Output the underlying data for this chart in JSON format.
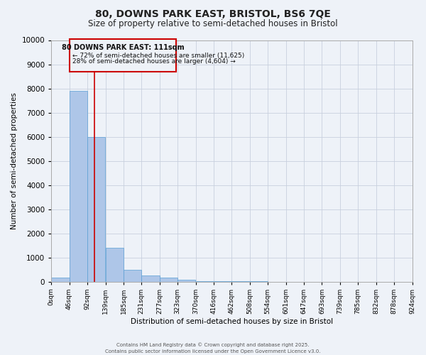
{
  "title1": "80, DOWNS PARK EAST, BRISTOL, BS6 7QE",
  "title2": "Size of property relative to semi-detached houses in Bristol",
  "xlabel": "Distribution of semi-detached houses by size in Bristol",
  "ylabel": "Number of semi-detached properties",
  "annotation_title": "80 DOWNS PARK EAST: 111sqm",
  "annotation_line1": "← 72% of semi-detached houses are smaller (11,625)",
  "annotation_line2": "28% of semi-detached houses are larger (4,604) →",
  "property_size": 111,
  "bin_edges": [
    0,
    46,
    92,
    139,
    185,
    231,
    277,
    323,
    370,
    416,
    462,
    508,
    554,
    601,
    647,
    693,
    739,
    785,
    832,
    878,
    924
  ],
  "bar_heights": [
    150,
    7900,
    6000,
    1400,
    500,
    250,
    150,
    80,
    10,
    5,
    3,
    2,
    1,
    1,
    0,
    0,
    0,
    0,
    0,
    0
  ],
  "bar_color": "#aec6e8",
  "bar_edge_color": "#5a9fd4",
  "red_line_color": "#cc0000",
  "annotation_box_color": "#cc0000",
  "background_color": "#eef2f8",
  "grid_color": "#c8d0de",
  "ylim": [
    0,
    10000
  ],
  "yticks": [
    0,
    1000,
    2000,
    3000,
    4000,
    5000,
    6000,
    7000,
    8000,
    9000,
    10000
  ],
  "footer1": "Contains HM Land Registry data © Crown copyright and database right 2025.",
  "footer2": "Contains public sector information licensed under the Open Government Licence v3.0."
}
